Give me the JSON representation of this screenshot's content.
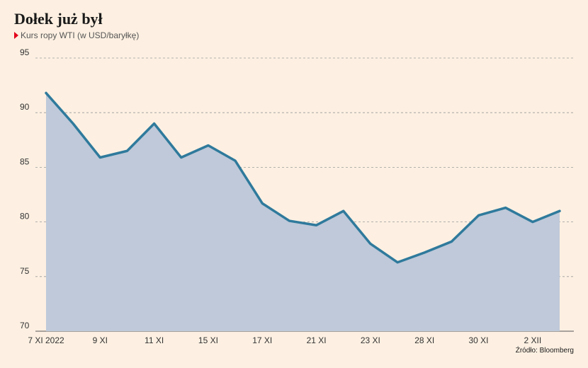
{
  "header": {
    "title": "Dołek już był",
    "subtitle": "Kurs ropy WTI (w USD/baryłkę)"
  },
  "footer": {
    "source": "Źródło: Bloomberg"
  },
  "colors": {
    "background": "#fdf0e2",
    "line": "#2f7a9c",
    "area": "#bfc9d9",
    "grid": "#9a9a9a",
    "marker": "#e3001b"
  },
  "chart_data": {
    "type": "area",
    "title": "Dołek już był",
    "subtitle": "Kurs ropy WTI (w USD/baryłkę)",
    "xlabel": "",
    "ylabel": "",
    "ylim": [
      70,
      95
    ],
    "yticks": [
      70,
      75,
      80,
      85,
      90,
      95
    ],
    "grid": true,
    "x_labels": [
      {
        "label": "7 XI 2022",
        "index": 0
      },
      {
        "label": "9 XI",
        "index": 2
      },
      {
        "label": "11 XI",
        "index": 4
      },
      {
        "label": "15 XI",
        "index": 6
      },
      {
        "label": "17 XI",
        "index": 8
      },
      {
        "label": "21 XI",
        "index": 10
      },
      {
        "label": "23 XI",
        "index": 12
      },
      {
        "label": "28 XI",
        "index": 14
      },
      {
        "label": "30 XI",
        "index": 16
      },
      {
        "label": "2 XII",
        "index": 18
      }
    ],
    "values": [
      91.8,
      89.0,
      85.9,
      86.5,
      89.0,
      85.9,
      87.0,
      85.6,
      81.7,
      80.1,
      79.7,
      81.0,
      78.0,
      76.3,
      77.2,
      78.2,
      80.6,
      81.3,
      80.0,
      81.0
    ]
  }
}
